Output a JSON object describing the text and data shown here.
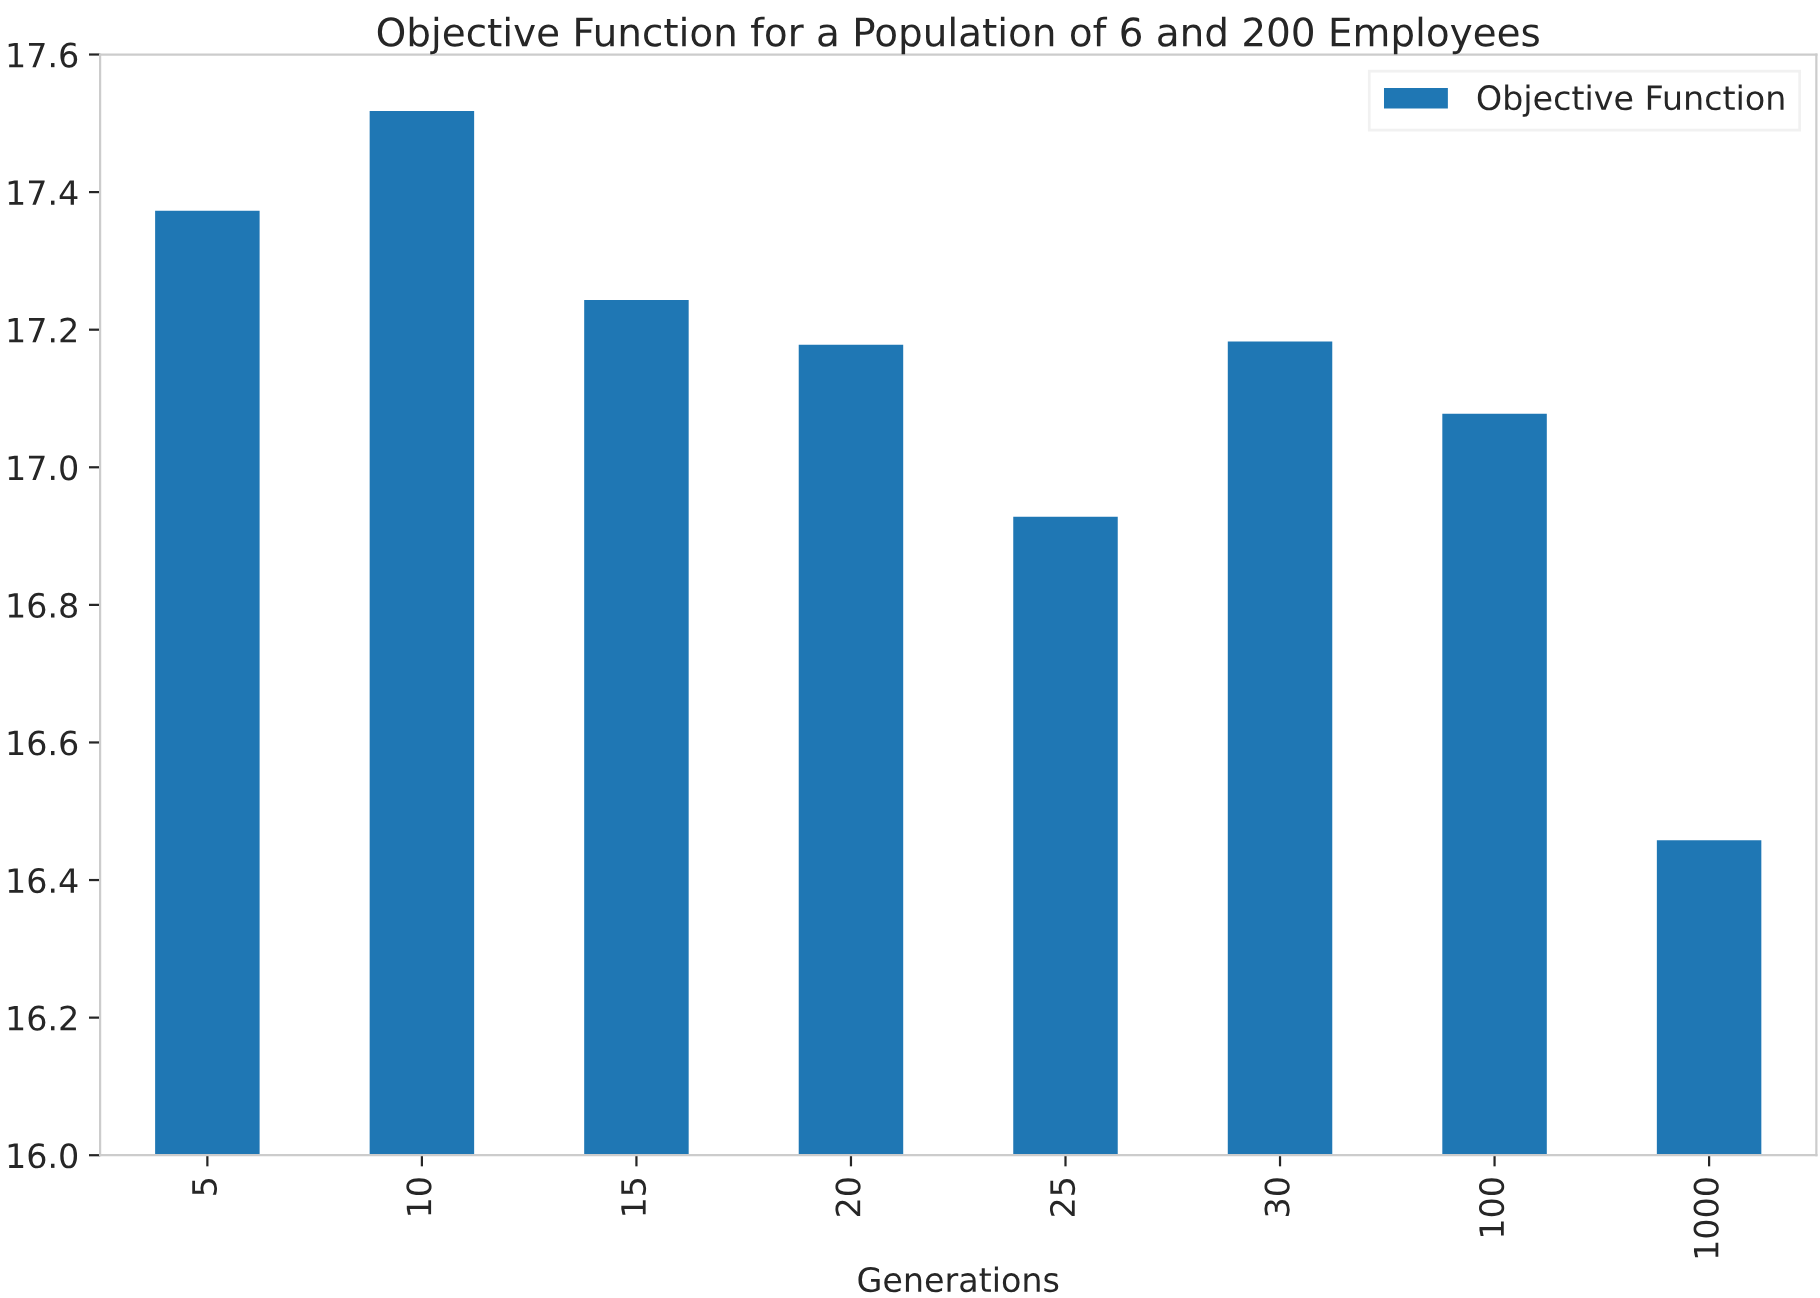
{
  "chart_data": {
    "type": "bar",
    "title": "Objective Function for a Population of 6 and 200 Employees",
    "xlabel": "Generations",
    "categories": [
      "5",
      "10",
      "15",
      "20",
      "25",
      "30",
      "100",
      "1000"
    ],
    "series": [
      {
        "name": "Objective Function",
        "color": "#1f77b4",
        "values": [
          17.375,
          17.52,
          17.245,
          17.18,
          16.93,
          17.185,
          17.08,
          16.46
        ]
      }
    ],
    "ylim": [
      16.0,
      17.6
    ],
    "yticks": [
      {
        "value": 16.0,
        "label": "16.0"
      },
      {
        "value": 16.2,
        "label": "16.2"
      },
      {
        "value": 16.4,
        "label": "16.4"
      },
      {
        "value": 16.6,
        "label": "16.6"
      },
      {
        "value": 16.8,
        "label": "16.8"
      },
      {
        "value": 17.0,
        "label": "17.0"
      },
      {
        "value": 17.2,
        "label": "17.2"
      },
      {
        "value": 17.4,
        "label": "17.4"
      },
      {
        "value": 17.6,
        "label": "17.6"
      }
    ],
    "grid": false,
    "legend": "top right"
  }
}
